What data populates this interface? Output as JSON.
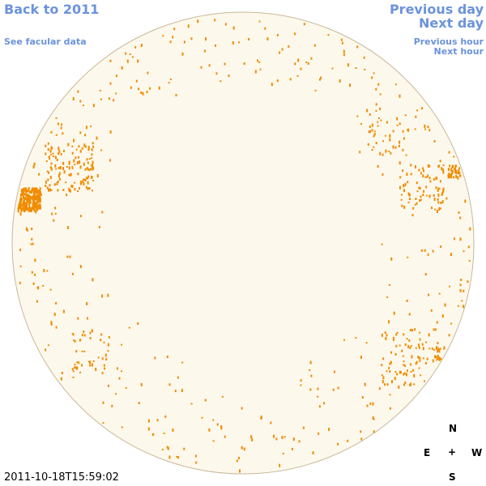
{
  "nav": {
    "back": "Back to 2011",
    "facular": "See facular data",
    "previous_day": "Previous day",
    "next_day": "Next day",
    "previous_hour": "Previous hour",
    "next_hour": "Next hour"
  },
  "timestamp": "2011-10-18T15:59:02",
  "compass": {
    "north": "N",
    "east": "E",
    "center": "+",
    "west": "W",
    "south": "S"
  }
}
